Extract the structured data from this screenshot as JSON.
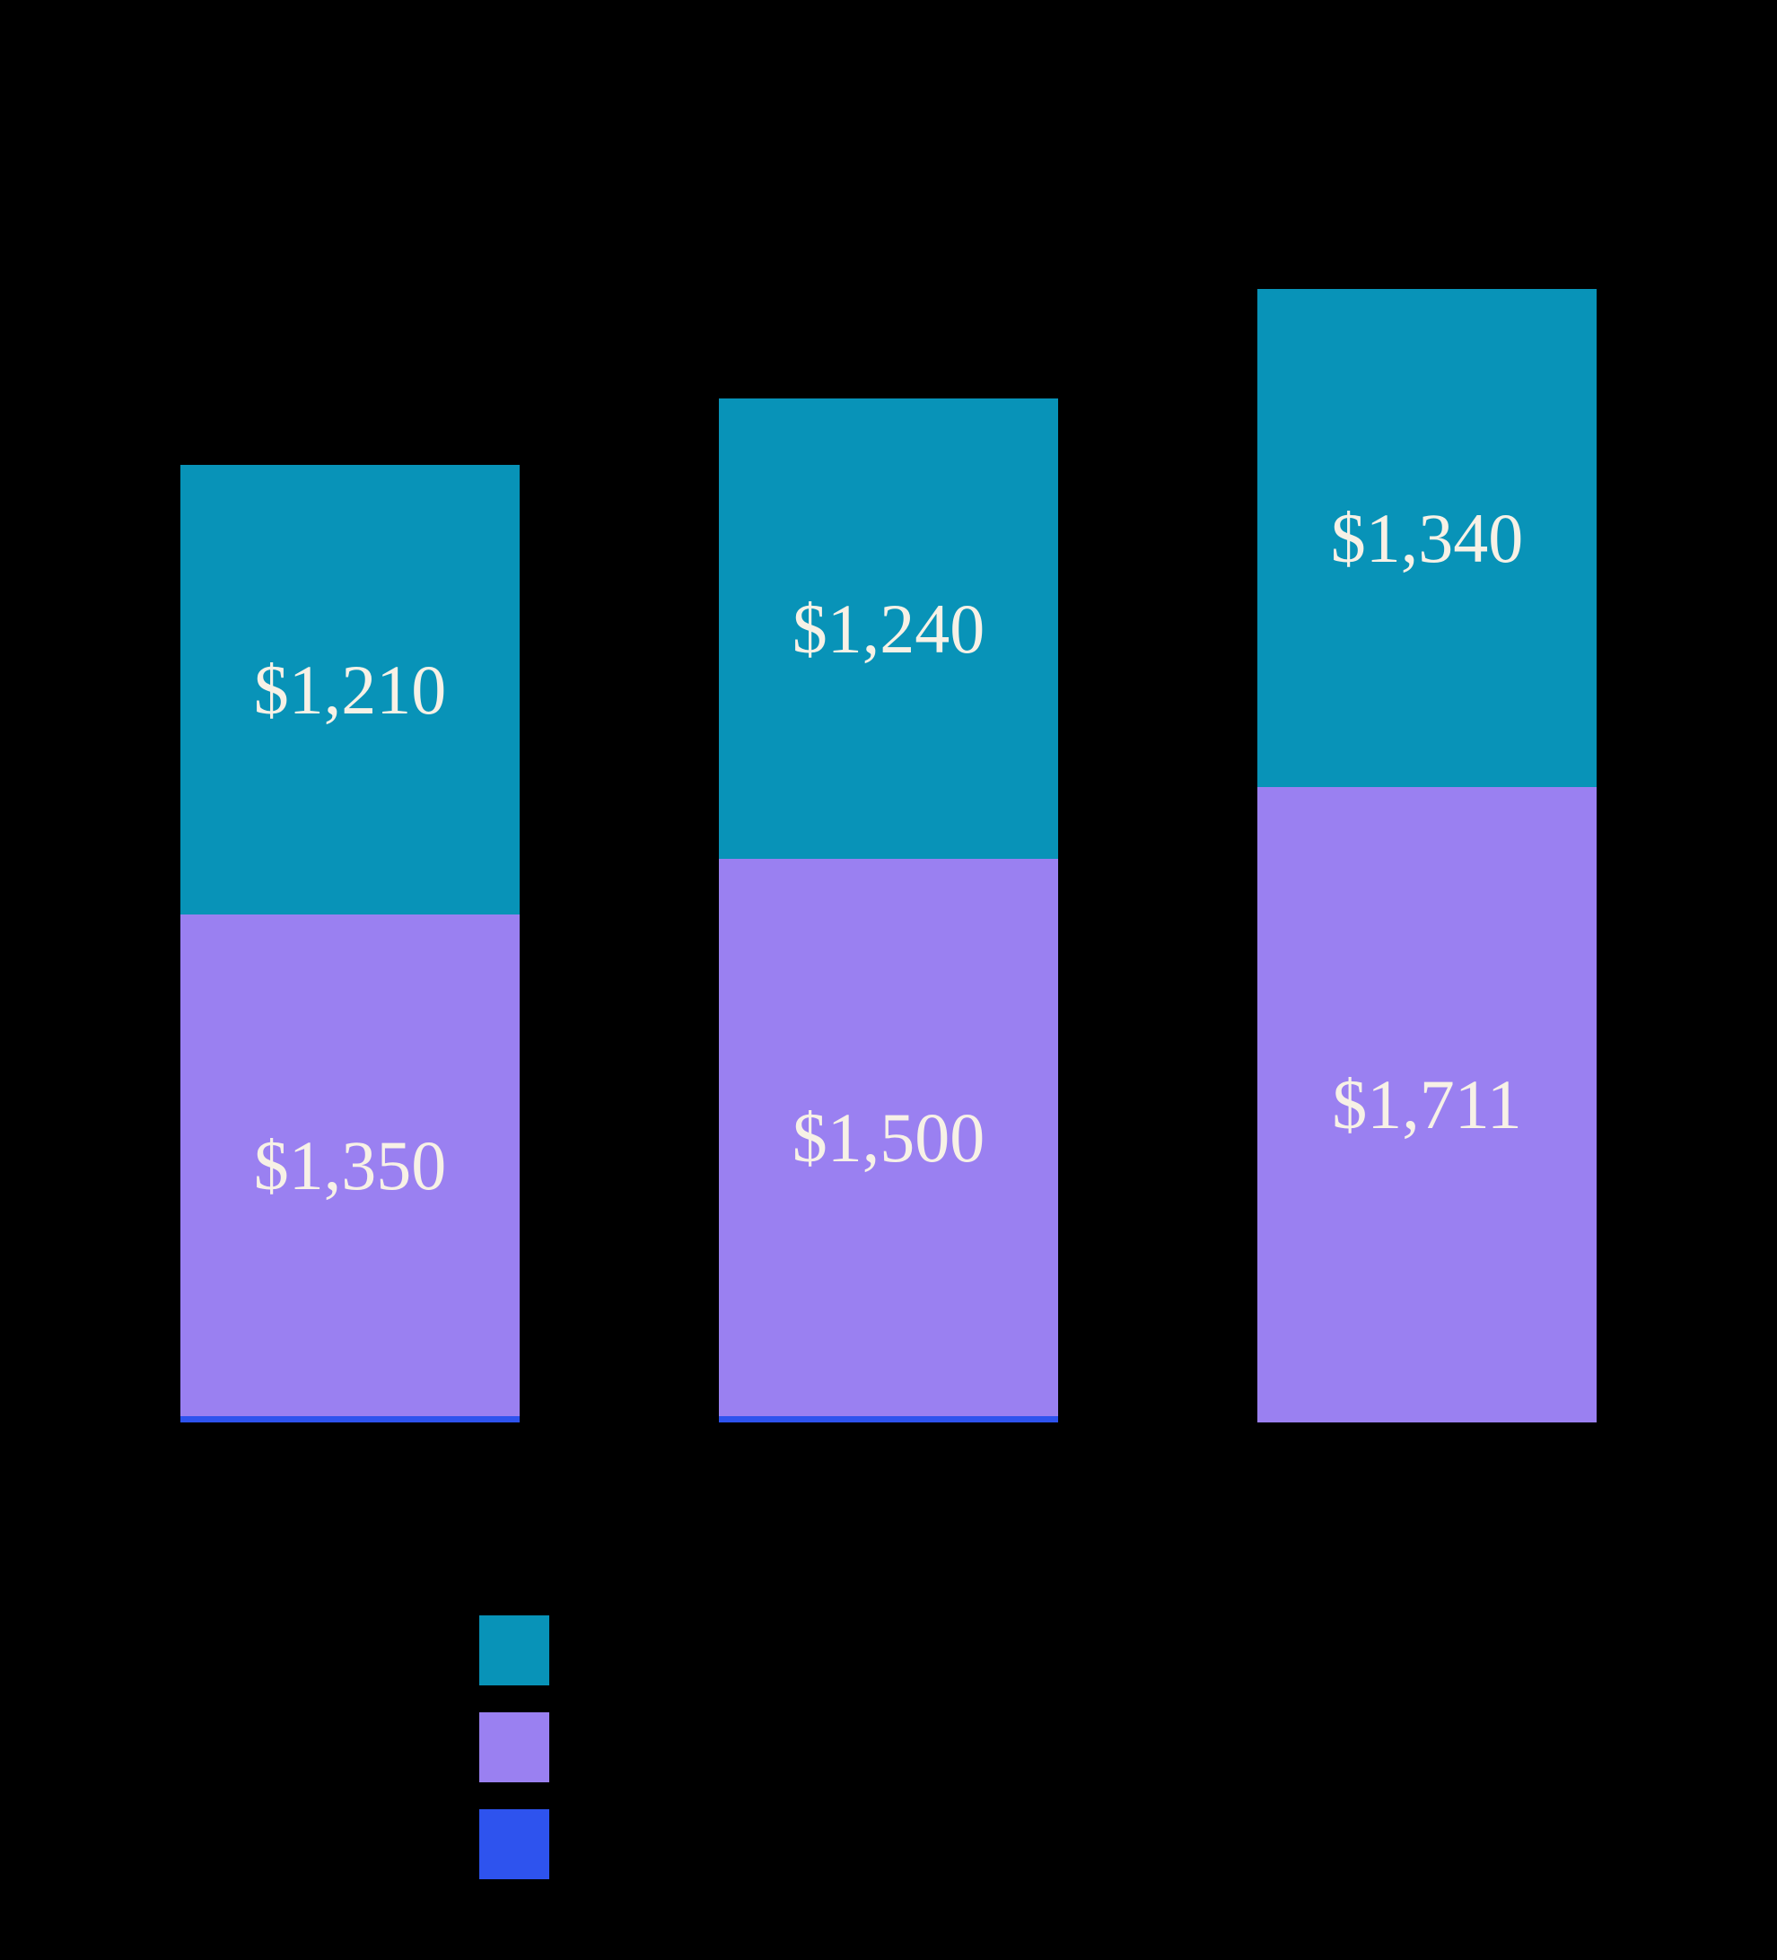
{
  "background_color": "#000000",
  "label_text_color": "#f7f1e6",
  "chart_data": {
    "type": "bar",
    "stacked": true,
    "orientation": "vertical",
    "title": "",
    "xlabel": "",
    "ylabel": "",
    "categories": [
      "",
      "",
      ""
    ],
    "axis_labels_visible": false,
    "grid": false,
    "legend_position": "bottom-left",
    "series": [
      {
        "name": "teal-segment",
        "color": "#0893b8",
        "values": [
          1210,
          1240,
          1340
        ],
        "labels": [
          "$1,210",
          "$1,240",
          "$1,340"
        ]
      },
      {
        "name": "purple-segment",
        "color": "#9a80f1",
        "values": [
          1350,
          1500,
          1711
        ],
        "labels": [
          "$1,350",
          "$1,500",
          "$1,711"
        ]
      },
      {
        "name": "blue-segment",
        "color": "#2e53ee",
        "values": [
          17,
          17,
          0
        ],
        "labels": [
          "",
          "",
          ""
        ]
      }
    ]
  },
  "legend": {
    "items": [
      {
        "swatch_color": "#0893b8",
        "label": ""
      },
      {
        "swatch_color": "#9a80f1",
        "label": ""
      },
      {
        "swatch_color": "#2e53ee",
        "label": ""
      }
    ]
  }
}
